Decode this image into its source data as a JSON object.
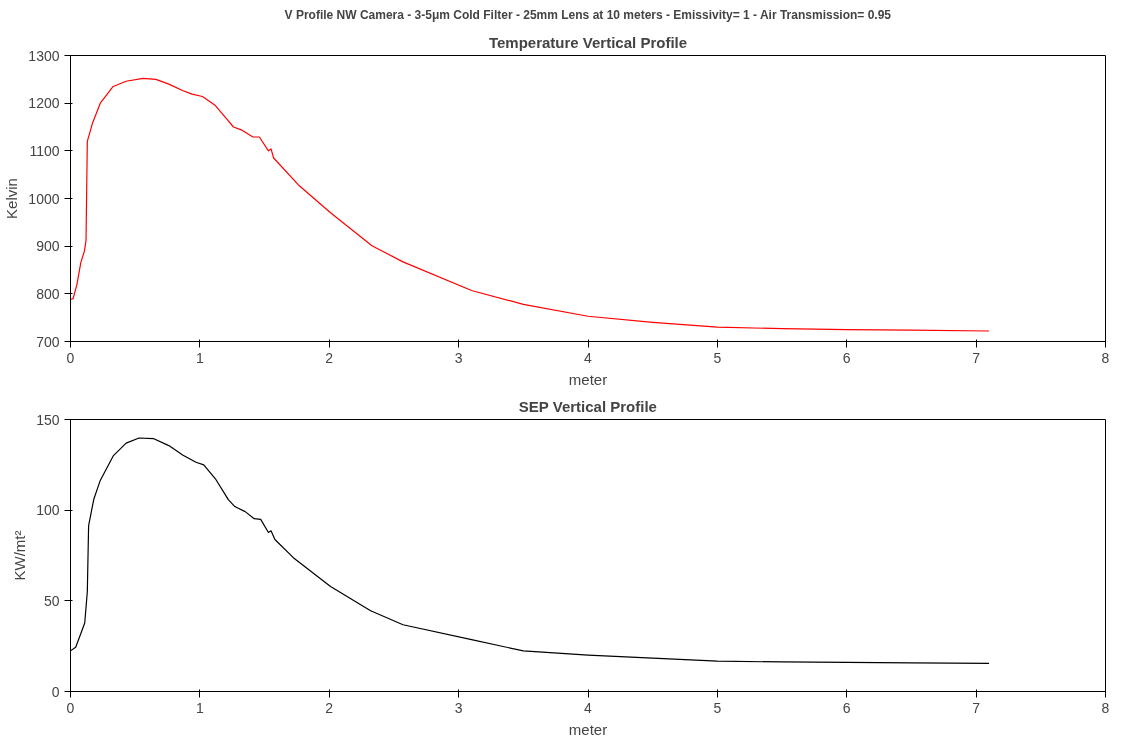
{
  "chart_data": [
    {
      "type": "line",
      "title": "V Profile NW Camera - 3-5μm Cold Filter - 25mm Lens at 10 meters - Emissivity= 1 - Air Transmission= 0.95",
      "subtitle": "Temperature Vertical Profile",
      "xlabel": "meter",
      "ylabel": "Kelvin",
      "xlim": [
        0,
        8
      ],
      "xticks": [
        0,
        1,
        2,
        3,
        4,
        5,
        6,
        7,
        8
      ],
      "ylim": [
        700,
        1300
      ],
      "yticks": [
        700,
        800,
        900,
        1000,
        1100,
        1200,
        1300
      ],
      "grid": false,
      "series": [
        {
          "color": "#ff0000",
          "x": [
            0,
            0.02,
            0.05,
            0.08,
            0.107,
            0.12,
            0.13,
            0.17,
            0.23,
            0.33,
            0.43,
            0.56,
            0.66,
            0.76,
            0.87,
            0.94,
            1.02,
            1.12,
            1.21,
            1.26,
            1.32,
            1.41,
            1.46,
            1.53,
            1.55,
            1.57,
            1.76,
            2.01,
            2.33,
            2.57,
            3.1,
            3.5,
            4.0,
            4.5,
            5.0,
            5.5,
            6.0,
            6.5,
            7.1
          ],
          "values": [
            788,
            790,
            820,
            866,
            889,
            912,
            1120,
            1158,
            1200,
            1235,
            1246,
            1252,
            1250,
            1240,
            1226,
            1219,
            1214,
            1195,
            1166,
            1150,
            1144,
            1129,
            1129,
            1100,
            1104,
            1085,
            1029,
            970,
            901,
            867,
            807,
            778,
            753,
            740,
            730,
            727,
            725,
            724,
            722
          ]
        }
      ]
    },
    {
      "type": "line",
      "title": "SEP Vertical Profile",
      "xlabel": "meter",
      "ylabel": "KW/mt²",
      "xlim": [
        0,
        8
      ],
      "xticks": [
        0,
        1,
        2,
        3,
        4,
        5,
        6,
        7,
        8
      ],
      "ylim": [
        0,
        150
      ],
      "yticks": [
        0,
        50,
        100,
        150
      ],
      "grid": false,
      "series": [
        {
          "color": "#000000",
          "x": [
            0,
            0.04,
            0.08,
            0.11,
            0.13,
            0.14,
            0.18,
            0.23,
            0.33,
            0.43,
            0.53,
            0.64,
            0.76,
            0.87,
            0.97,
            1.03,
            1.12,
            1.22,
            1.27,
            1.35,
            1.42,
            1.47,
            1.53,
            1.55,
            1.58,
            1.73,
            2.01,
            2.32,
            2.57,
            3.1,
            3.5,
            4.0,
            4.5,
            5.0,
            5.5,
            6.0,
            6.5,
            7.1
          ],
          "values": [
            22.4,
            24.4,
            32,
            37.8,
            55,
            91.5,
            106,
            116.4,
            129.9,
            137,
            139.8,
            139.5,
            135.6,
            130.3,
            126.4,
            125,
            117.3,
            105.8,
            102,
            99.2,
            95.3,
            94.9,
            87.7,
            88.6,
            83.8,
            73.3,
            57.9,
            44.5,
            36.8,
            28.6,
            22.4,
            20.1,
            18.4,
            16.7,
            16.3,
            16.1,
            15.8,
            15.5
          ]
        }
      ]
    }
  ]
}
